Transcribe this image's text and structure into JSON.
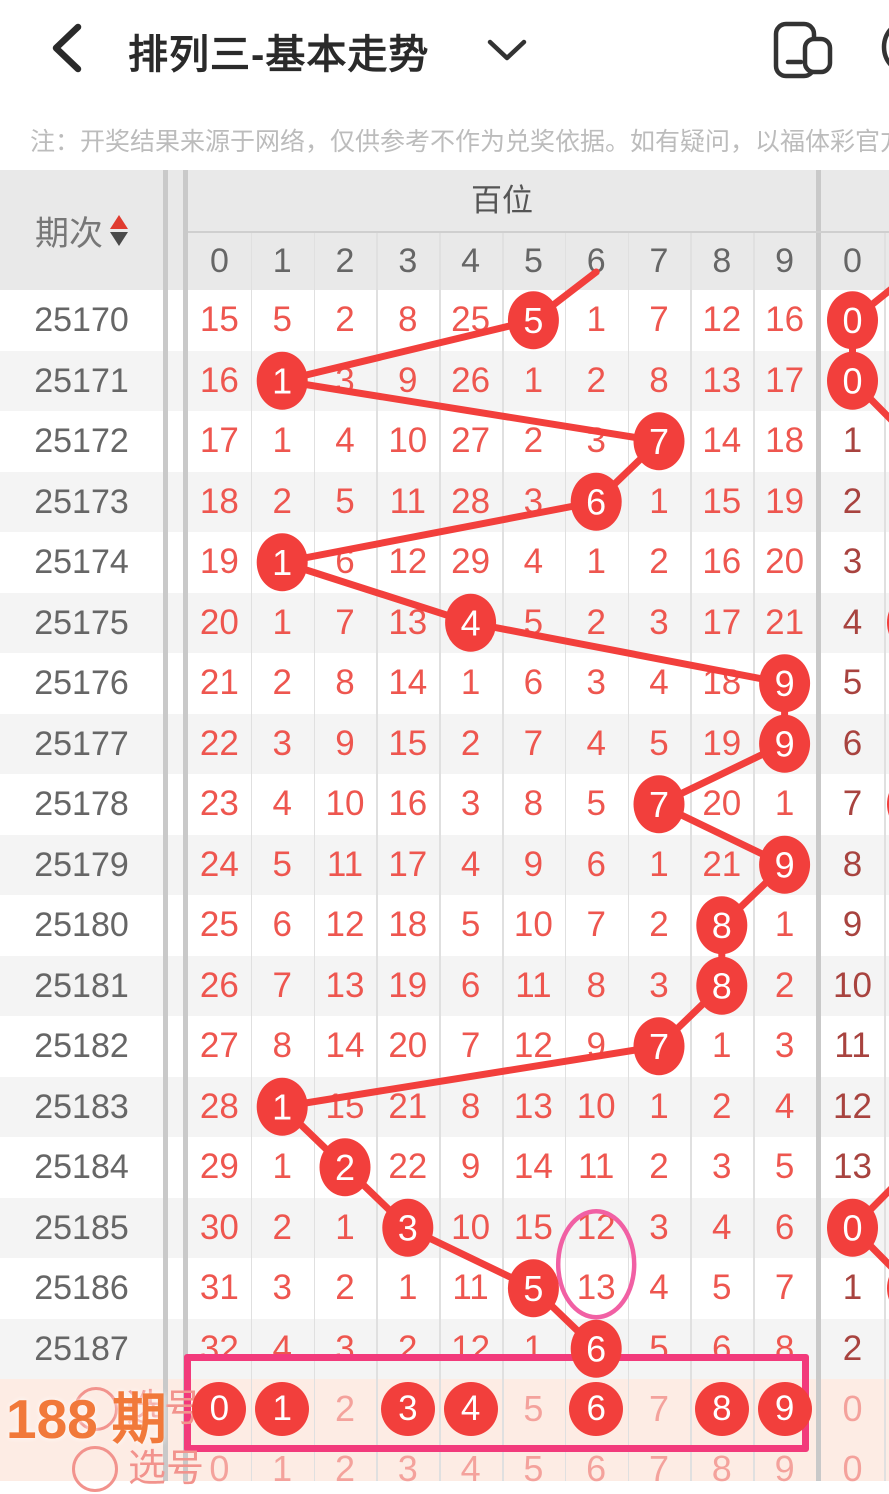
{
  "colors": {
    "red": "#f23f3c",
    "number_red": "#ee564f",
    "dark_red": "#a8433f",
    "pink_box": "#f23a7b",
    "pink_ellipse": "#f160a4",
    "light_pink": "#f4a29c",
    "pink_label": "#f2938d",
    "orange": "#f1793a",
    "header_gray": "#e9e9e9",
    "stripe": "#f4f4f4",
    "peach": "#fdece4",
    "divider_thick": "#c9c9c9",
    "cell_line": "#e0e0e0",
    "period_gray": "#666666",
    "notice_gray": "#bcbcbc"
  },
  "header": {
    "title": "排列三-基本走势",
    "back_icon": "back-chevron",
    "dropdown_icon": "chevron-down",
    "window_icon": "multi-window",
    "more_icon": "more-circle"
  },
  "notice": "注：开奖结果来源于网络，仅供参考不作为兑奖依据。如有疑问，以福体彩官方数据为准",
  "table": {
    "period_header": "期次",
    "group_header": "百位",
    "digit_headers": [
      "0",
      "1",
      "2",
      "3",
      "4",
      "5",
      "6",
      "7",
      "8",
      "9"
    ],
    "group2_digit_header": "0",
    "prev_trend_col": 6,
    "rows": [
      {
        "period": "25170",
        "values": [
          "15",
          "5",
          "2",
          "8",
          "25",
          "5",
          "1",
          "7",
          "12",
          "16"
        ],
        "hit": 5,
        "right": "0",
        "right_hit": true
      },
      {
        "period": "25171",
        "values": [
          "16",
          "1",
          "3",
          "9",
          "26",
          "1",
          "2",
          "8",
          "13",
          "17"
        ],
        "hit": 1,
        "right": "0",
        "right_hit": true
      },
      {
        "period": "25172",
        "values": [
          "17",
          "1",
          "4",
          "10",
          "27",
          "2",
          "3",
          "7",
          "14",
          "18"
        ],
        "hit": 7,
        "right": "1",
        "right_hit": false
      },
      {
        "period": "25173",
        "values": [
          "18",
          "2",
          "5",
          "11",
          "28",
          "3",
          "6",
          "1",
          "15",
          "19"
        ],
        "hit": 6,
        "right": "2",
        "right_hit": false
      },
      {
        "period": "25174",
        "values": [
          "19",
          "1",
          "6",
          "12",
          "29",
          "4",
          "1",
          "2",
          "16",
          "20"
        ],
        "hit": 1,
        "right": "3",
        "right_hit": false
      },
      {
        "period": "25175",
        "values": [
          "20",
          "1",
          "7",
          "13",
          "4",
          "5",
          "2",
          "3",
          "17",
          "21"
        ],
        "hit": 4,
        "right": "4",
        "right_hit": false
      },
      {
        "period": "25176",
        "values": [
          "21",
          "2",
          "8",
          "14",
          "1",
          "6",
          "3",
          "4",
          "18",
          "9"
        ],
        "hit": 9,
        "right": "5",
        "right_hit": false
      },
      {
        "period": "25177",
        "values": [
          "22",
          "3",
          "9",
          "15",
          "2",
          "7",
          "4",
          "5",
          "19",
          "9"
        ],
        "hit": 9,
        "right": "6",
        "right_hit": false
      },
      {
        "period": "25178",
        "values": [
          "23",
          "4",
          "10",
          "16",
          "3",
          "8",
          "5",
          "7",
          "20",
          "1"
        ],
        "hit": 7,
        "right": "7",
        "right_hit": false
      },
      {
        "period": "25179",
        "values": [
          "24",
          "5",
          "11",
          "17",
          "4",
          "9",
          "6",
          "1",
          "21",
          "9"
        ],
        "hit": 9,
        "right": "8",
        "right_hit": false
      },
      {
        "period": "25180",
        "values": [
          "25",
          "6",
          "12",
          "18",
          "5",
          "10",
          "7",
          "2",
          "8",
          "1"
        ],
        "hit": 8,
        "right": "9",
        "right_hit": false
      },
      {
        "period": "25181",
        "values": [
          "26",
          "7",
          "13",
          "19",
          "6",
          "11",
          "8",
          "3",
          "8",
          "2"
        ],
        "hit": 8,
        "right": "10",
        "right_hit": false
      },
      {
        "period": "25182",
        "values": [
          "27",
          "8",
          "14",
          "20",
          "7",
          "12",
          "9",
          "7",
          "1",
          "3"
        ],
        "hit": 7,
        "right": "11",
        "right_hit": false
      },
      {
        "period": "25183",
        "values": [
          "28",
          "1",
          "15",
          "21",
          "8",
          "13",
          "10",
          "1",
          "2",
          "4"
        ],
        "hit": 1,
        "right": "12",
        "right_hit": false
      },
      {
        "period": "25184",
        "values": [
          "29",
          "1",
          "2",
          "22",
          "9",
          "14",
          "11",
          "2",
          "3",
          "5"
        ],
        "hit": 2,
        "right": "13",
        "right_hit": false
      },
      {
        "period": "25185",
        "values": [
          "30",
          "2",
          "1",
          "3",
          "10",
          "15",
          "12",
          "3",
          "4",
          "6"
        ],
        "hit": 3,
        "right": "0",
        "right_hit": true
      },
      {
        "period": "25186",
        "values": [
          "31",
          "3",
          "2",
          "1",
          "11",
          "5",
          "13",
          "4",
          "5",
          "7"
        ],
        "hit": 5,
        "right": "1",
        "right_hit": false
      },
      {
        "period": "25187",
        "values": [
          "32",
          "4",
          "3",
          "2",
          "12",
          "1",
          "6",
          "5",
          "6",
          "8"
        ],
        "hit": 6,
        "right": "2",
        "right_hit": false
      }
    ],
    "right_trend": {
      "circle_rows": [
        0,
        1,
        15
      ],
      "partial_circle_rows": [
        5,
        8,
        16
      ],
      "segments": [
        [
          [
            -1,
            1
          ],
          [
            0,
            0
          ]
        ],
        [
          [
            0,
            0
          ],
          [
            1,
            0
          ]
        ],
        [
          [
            1,
            0
          ],
          [
            2,
            1
          ]
        ],
        [
          [
            14,
            1
          ],
          [
            15,
            0
          ]
        ],
        [
          [
            15,
            0
          ],
          [
            16,
            1
          ]
        ]
      ]
    }
  },
  "annotation_ellipse": {
    "row": 16,
    "col": 6
  },
  "selection": {
    "overlay_count": "188",
    "overlay_unit": "期",
    "label": "选号",
    "row1_digits": [
      "0",
      "1",
      "2",
      "3",
      "4",
      "5",
      "6",
      "7",
      "8",
      "9"
    ],
    "row1_picked": [
      0,
      1,
      3,
      4,
      6,
      8,
      9
    ],
    "row1_right": "0",
    "row2_digits": [
      "0",
      "1",
      "2",
      "3",
      "4",
      "5",
      "6",
      "7",
      "8",
      "9"
    ],
    "row2_right": "0"
  }
}
